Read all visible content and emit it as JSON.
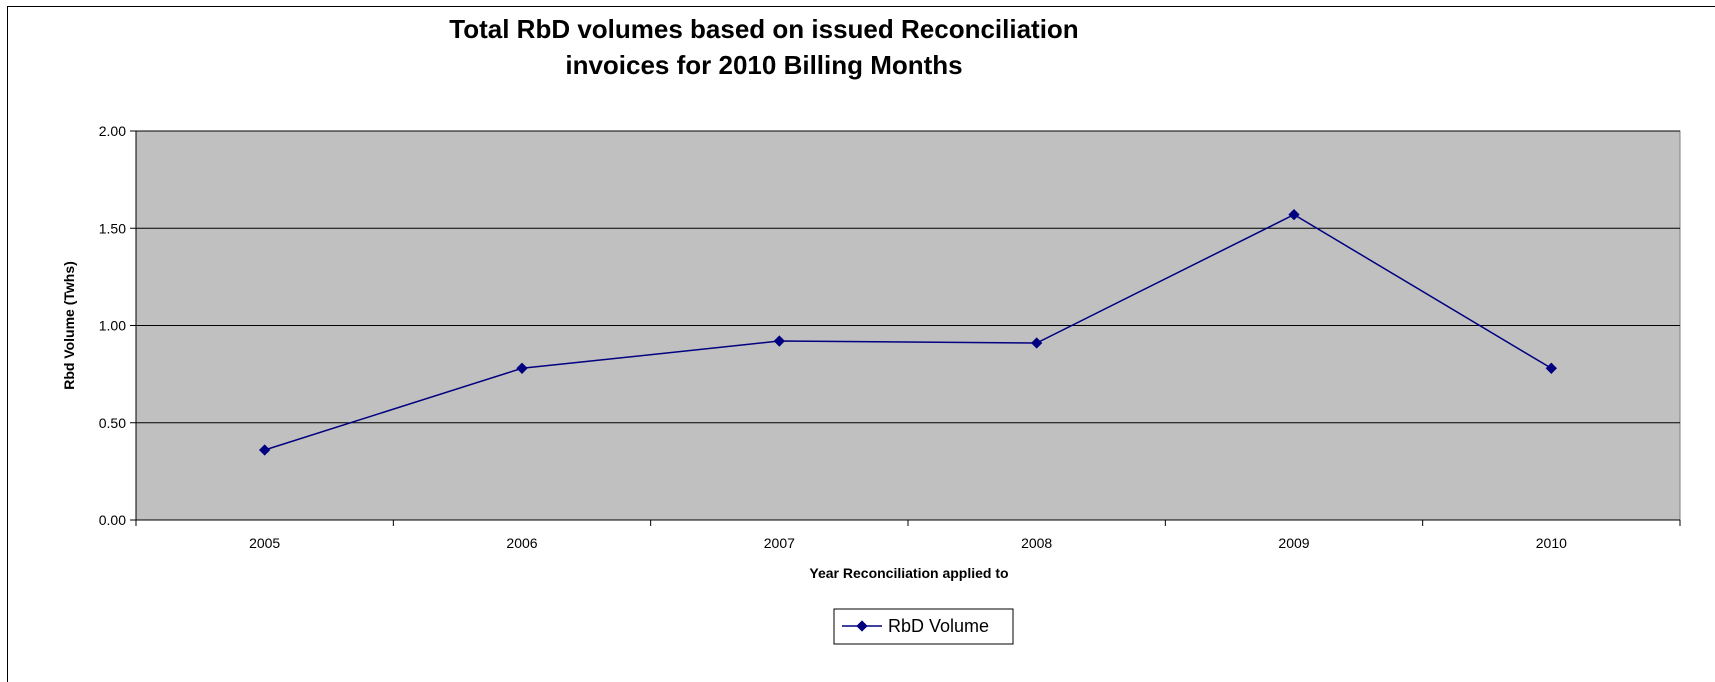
{
  "chart_data": {
    "type": "line",
    "title_lines": [
      "Total RbD volumes based on issued Reconciliation",
      "invoices for 2010 Billing Months"
    ],
    "xlabel": "Year Reconciliation applied to",
    "ylabel": "Rbd Volume (Twhs)",
    "categories": [
      "2005",
      "2006",
      "2007",
      "2008",
      "2009",
      "2010"
    ],
    "y_tick_labels": [
      "0.00",
      "0.50",
      "1.00",
      "1.50",
      "2.00"
    ],
    "ylim": [
      0,
      2
    ],
    "grid": true,
    "legend_position": "bottom-center",
    "series": [
      {
        "name": "RbD Volume",
        "values": [
          0.36,
          0.78,
          0.92,
          0.91,
          1.57,
          0.78
        ],
        "color": "#000080"
      }
    ],
    "plot_background": "#C0C0C0"
  }
}
